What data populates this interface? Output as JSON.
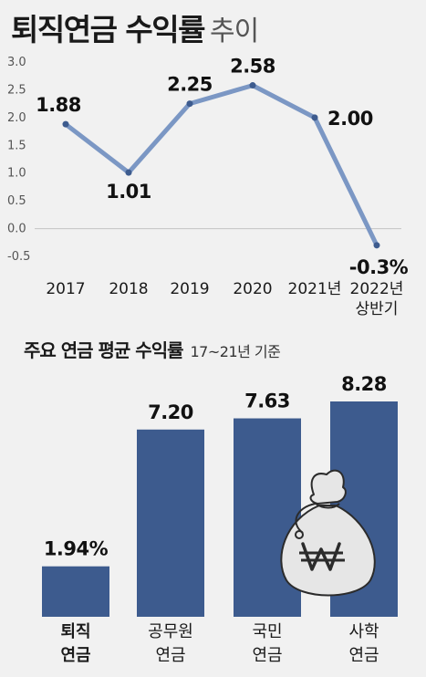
{
  "header": {
    "title": "퇴직연금 수익률",
    "title_suffix": "추이"
  },
  "subheader": {
    "title": "주요 연금 평균 수익률",
    "note": "17~21년 기준"
  },
  "colors": {
    "line": "#7b97c4",
    "bar": "#3d5b8e",
    "background": "#f1f1f1",
    "zero_line": "#c4c4c4"
  },
  "icons": {
    "money_bag": "money-bag-won-icon"
  },
  "chart_data": [
    {
      "type": "line",
      "categories": [
        [
          "2017"
        ],
        [
          "2018"
        ],
        [
          "2019"
        ],
        [
          "2020"
        ],
        [
          "2021년"
        ],
        [
          "2022년",
          "상반기"
        ]
      ],
      "values": [
        1.88,
        1.01,
        2.25,
        2.58,
        2.0,
        -0.3
      ],
      "data_labels": [
        "1.88",
        "1.01",
        "2.25",
        "2.58",
        "2.00",
        "-0.3%"
      ],
      "ylim": [
        -0.5,
        3.0
      ],
      "yticks": [
        "3.0",
        "2.5",
        "2.0",
        "1.5",
        "1.0",
        "0.5",
        "0.0",
        "-0.5"
      ],
      "grid": false
    },
    {
      "type": "bar",
      "categories": [
        [
          "퇴직",
          "연금"
        ],
        [
          "공무원",
          "연금"
        ],
        [
          "국민",
          "연금"
        ],
        [
          "사학",
          "연금"
        ]
      ],
      "values": [
        1.94,
        7.2,
        7.63,
        8.28
      ],
      "data_labels": [
        "1.94%",
        "7.20",
        "7.63",
        "8.28"
      ],
      "highlight_category": 0
    }
  ]
}
